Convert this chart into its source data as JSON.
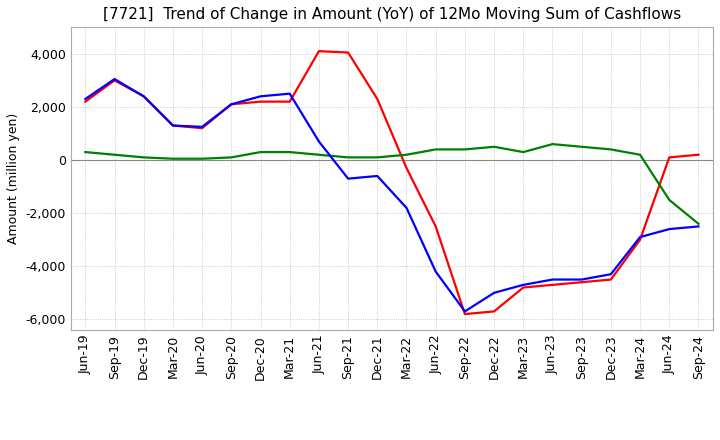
{
  "title": "[7721]  Trend of Change in Amount (YoY) of 12Mo Moving Sum of Cashflows",
  "ylabel": "Amount (million yen)",
  "title_fontsize": 11,
  "label_fontsize": 9,
  "tick_fontsize": 9,
  "background_color": "#ffffff",
  "plot_background_color": "#ffffff",
  "grid_color": "#bbbbbb",
  "x_labels": [
    "Jun-19",
    "Sep-19",
    "Dec-19",
    "Mar-20",
    "Jun-20",
    "Sep-20",
    "Dec-20",
    "Mar-21",
    "Jun-21",
    "Sep-21",
    "Dec-21",
    "Mar-22",
    "Jun-22",
    "Sep-22",
    "Dec-22",
    "Mar-23",
    "Jun-23",
    "Sep-23",
    "Dec-23",
    "Mar-24",
    "Jun-24",
    "Sep-24"
  ],
  "operating_cashflow": [
    2200,
    3000,
    2400,
    1300,
    1200,
    2100,
    2200,
    2200,
    4100,
    4050,
    2300,
    -300,
    -2500,
    -5800,
    -5700,
    -4800,
    -4700,
    -4600,
    -4500,
    -3000,
    100,
    200
  ],
  "investing_cashflow": [
    300,
    200,
    100,
    50,
    50,
    100,
    300,
    300,
    200,
    100,
    100,
    200,
    400,
    400,
    500,
    300,
    600,
    500,
    400,
    200,
    -1500,
    -2400
  ],
  "free_cashflow": [
    2300,
    3050,
    2400,
    1300,
    1250,
    2100,
    2400,
    2500,
    700,
    -700,
    -600,
    -1800,
    -4200,
    -5700,
    -5000,
    -4700,
    -4500,
    -4500,
    -4300,
    -2900,
    -2600,
    -2500
  ],
  "ylim": [
    -6400,
    5000
  ],
  "yticks": [
    -6000,
    -4000,
    -2000,
    0,
    2000,
    4000
  ],
  "operating_color": "#ff0000",
  "investing_color": "#008000",
  "free_color": "#0000ff",
  "line_width": 1.6
}
